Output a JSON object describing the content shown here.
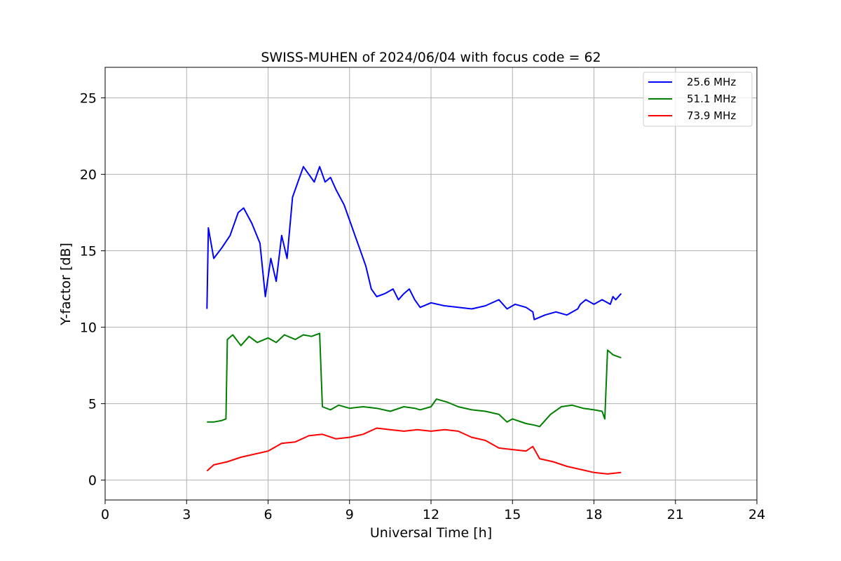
{
  "chart_data": {
    "type": "line",
    "title": "SWISS-MUHEN of 2024/06/04 with focus code = 62",
    "xlabel": "Universal Time [h]",
    "ylabel": "Y-factor [dB]",
    "xlim": [
      0,
      24
    ],
    "ylim": [
      -1.3,
      27
    ],
    "xticks": [
      0,
      3,
      6,
      9,
      12,
      15,
      18,
      21,
      24
    ],
    "yticks": [
      0,
      5,
      10,
      15,
      20,
      25
    ],
    "grid": true,
    "legend_position": "top-right",
    "series": [
      {
        "name": "25.6 MHz",
        "color": "#0000ff",
        "x": [
          3.75,
          3.8,
          4.0,
          4.3,
          4.6,
          4.9,
          5.1,
          5.4,
          5.7,
          5.9,
          6.1,
          6.3,
          6.5,
          6.7,
          6.9,
          7.1,
          7.3,
          7.5,
          7.7,
          7.9,
          8.1,
          8.3,
          8.5,
          8.8,
          9.0,
          9.2,
          9.4,
          9.6,
          9.8,
          10.0,
          10.3,
          10.6,
          10.8,
          11.0,
          11.2,
          11.4,
          11.6,
          12.0,
          12.5,
          13.0,
          13.5,
          14.0,
          14.5,
          14.8,
          15.1,
          15.5,
          15.75,
          15.8,
          16.2,
          16.6,
          17.0,
          17.4,
          17.5,
          17.7,
          18.0,
          18.3,
          18.6,
          18.7,
          18.8,
          19.0
        ],
        "values": [
          11.2,
          16.5,
          14.5,
          15.2,
          16.0,
          17.5,
          17.8,
          16.8,
          15.5,
          12.0,
          14.5,
          13.0,
          16.0,
          14.5,
          18.5,
          19.5,
          20.5,
          20.0,
          19.5,
          20.5,
          19.5,
          19.8,
          19.0,
          18.0,
          17.0,
          16.0,
          15.0,
          14.0,
          12.5,
          12.0,
          12.2,
          12.5,
          11.8,
          12.2,
          12.5,
          11.8,
          11.3,
          11.6,
          11.4,
          11.3,
          11.2,
          11.4,
          11.8,
          11.2,
          11.5,
          11.3,
          11.0,
          10.5,
          10.8,
          11.0,
          10.8,
          11.2,
          11.5,
          11.8,
          11.5,
          11.8,
          11.5,
          12.0,
          11.8,
          12.2
        ]
      },
      {
        "name": "51.1 MHz",
        "color": "#008000",
        "x": [
          3.75,
          4.0,
          4.3,
          4.45,
          4.5,
          4.7,
          5.0,
          5.3,
          5.6,
          6.0,
          6.3,
          6.6,
          7.0,
          7.3,
          7.6,
          7.9,
          8.0,
          8.3,
          8.6,
          9.0,
          9.5,
          10.0,
          10.5,
          11.0,
          11.4,
          11.6,
          12.0,
          12.2,
          12.6,
          13.0,
          13.5,
          14.0,
          14.5,
          14.8,
          15.0,
          15.5,
          15.8,
          16.0,
          16.4,
          16.8,
          17.2,
          17.6,
          18.0,
          18.3,
          18.4,
          18.5,
          18.7,
          19.0
        ],
        "values": [
          3.8,
          3.8,
          3.9,
          4.0,
          9.2,
          9.5,
          8.8,
          9.4,
          9.0,
          9.3,
          9.0,
          9.5,
          9.2,
          9.5,
          9.4,
          9.6,
          4.8,
          4.6,
          4.9,
          4.7,
          4.8,
          4.7,
          4.5,
          4.8,
          4.7,
          4.6,
          4.8,
          5.3,
          5.1,
          4.8,
          4.6,
          4.5,
          4.3,
          3.8,
          4.0,
          3.7,
          3.6,
          3.5,
          4.3,
          4.8,
          4.9,
          4.7,
          4.6,
          4.5,
          4.0,
          8.5,
          8.2,
          8.0
        ]
      },
      {
        "name": "73.9 MHz",
        "color": "#ff0000",
        "x": [
          3.75,
          4.0,
          4.5,
          5.0,
          5.5,
          6.0,
          6.5,
          7.0,
          7.5,
          8.0,
          8.5,
          9.0,
          9.5,
          10.0,
          10.5,
          11.0,
          11.5,
          12.0,
          12.5,
          13.0,
          13.5,
          14.0,
          14.5,
          15.0,
          15.5,
          15.75,
          16.0,
          16.5,
          17.0,
          17.5,
          18.0,
          18.5,
          19.0
        ],
        "values": [
          0.6,
          1.0,
          1.2,
          1.5,
          1.7,
          1.9,
          2.4,
          2.5,
          2.9,
          3.0,
          2.7,
          2.8,
          3.0,
          3.4,
          3.3,
          3.2,
          3.3,
          3.2,
          3.3,
          3.2,
          2.8,
          2.6,
          2.1,
          2.0,
          1.9,
          2.2,
          1.4,
          1.2,
          0.9,
          0.7,
          0.5,
          0.4,
          0.5
        ]
      }
    ]
  }
}
